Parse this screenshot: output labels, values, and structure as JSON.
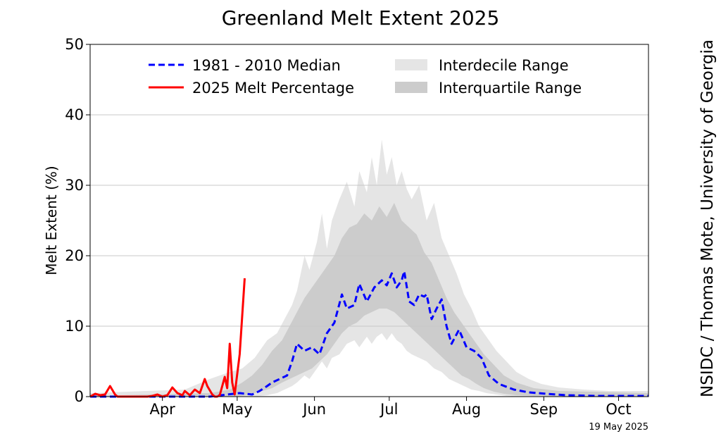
{
  "chart_data": {
    "type": "line",
    "title": "Greenland Melt Extent 2025",
    "ylabel": "Melt Extent (%)",
    "xlabel": "",
    "ylim": [
      0,
      50
    ],
    "yticks": [
      0,
      10,
      20,
      30,
      40,
      50
    ],
    "xlim_day_of_year": [
      77,
      301
    ],
    "x_month_ticks": [
      {
        "label": "Apr",
        "day": 106
      },
      {
        "label": "May",
        "day": 136
      },
      {
        "label": "Jun",
        "day": 167
      },
      {
        "label": "Jul",
        "day": 197
      },
      {
        "label": "Aug",
        "day": 228
      },
      {
        "label": "Sep",
        "day": 259
      },
      {
        "label": "Oct",
        "day": 289
      }
    ],
    "grid": "horizontal",
    "legend_placement": "top",
    "legend": {
      "median": "1981 - 2010 Median",
      "current": "2025 Melt Percentage",
      "interdecile": "Interdecile Range",
      "interquartile": "Interquartile Range"
    },
    "colors": {
      "median": "#0000ff",
      "current": "#ff0000",
      "interdecile": "#e5e5e5",
      "interquartile": "#cccccc"
    },
    "series": [
      {
        "name": "1981 - 2010 Median",
        "style": "dashed",
        "x": [
          77,
          110,
          125,
          132,
          137,
          142,
          145,
          148,
          150,
          153,
          156,
          158,
          160,
          163,
          166,
          169,
          172,
          175,
          178,
          180,
          183,
          185,
          188,
          191,
          194,
          196,
          198,
          200,
          202,
          203,
          205,
          207,
          209,
          211,
          212,
          214,
          216,
          218,
          220,
          222,
          225,
          228,
          231,
          234,
          237,
          241,
          247,
          253,
          260,
          268,
          280,
          301
        ],
        "y": [
          0,
          0,
          0,
          0.3,
          0.5,
          0.3,
          0.8,
          1.5,
          2.0,
          2.5,
          3.0,
          5.0,
          7.5,
          6.5,
          7.0,
          6.0,
          9.0,
          10.5,
          14.5,
          12.5,
          13.0,
          16.0,
          13.5,
          15.5,
          16.5,
          15.8,
          17.5,
          15.5,
          16.5,
          17.8,
          13.5,
          13.0,
          14.5,
          14.2,
          14.5,
          11.0,
          12.5,
          13.8,
          10.0,
          7.5,
          9.5,
          7.0,
          6.5,
          5.5,
          3.0,
          1.8,
          1.0,
          0.6,
          0.4,
          0.2,
          0.1,
          0.1
        ]
      },
      {
        "name": "2025 Melt Percentage",
        "style": "solid",
        "x": [
          77,
          79,
          81,
          83,
          85,
          87,
          88,
          90,
          95,
          100,
          102,
          104,
          106,
          108,
          110,
          112,
          114,
          115,
          117,
          119,
          121,
          123,
          124,
          126,
          127,
          128,
          129,
          131,
          132,
          133,
          134,
          135,
          137,
          139
        ],
        "y": [
          0,
          0.4,
          0.2,
          0.3,
          1.5,
          0.3,
          0,
          0,
          0,
          0,
          0.1,
          0.3,
          0,
          0.2,
          1.3,
          0.5,
          0.2,
          0.8,
          0.2,
          1.0,
          0.5,
          2.5,
          1.5,
          0.3,
          0,
          0,
          0.2,
          2.8,
          1.2,
          7.5,
          2.0,
          0.3,
          6.0,
          16.8
        ]
      }
    ],
    "bands": [
      {
        "name": "Interdecile Range",
        "x": [
          77,
          115,
          125,
          133,
          138,
          143,
          148,
          152,
          155,
          158,
          160,
          163,
          165,
          168,
          170,
          172,
          174,
          177,
          180,
          183,
          185,
          188,
          190,
          192,
          194,
          196,
          198,
          200,
          202,
          204,
          206,
          209,
          212,
          215,
          218,
          221,
          224,
          227,
          230,
          233,
          236,
          240,
          244,
          248,
          253,
          258,
          265,
          275,
          285,
          301
        ],
        "lower": [
          0,
          0,
          0,
          0,
          0,
          0,
          0.2,
          0.5,
          1.0,
          1.5,
          2.0,
          3.0,
          2.5,
          4.0,
          5.0,
          4.0,
          5.5,
          6.0,
          7.5,
          8.0,
          7.0,
          8.5,
          7.5,
          8.5,
          9.0,
          8.0,
          9.0,
          8.0,
          7.5,
          6.5,
          6.0,
          5.5,
          5.0,
          4.0,
          3.5,
          2.5,
          2.0,
          1.5,
          1.0,
          0.8,
          0.5,
          0.3,
          0.1,
          0,
          0,
          0,
          0,
          0,
          0,
          0
        ],
        "upper": [
          0.5,
          1.0,
          2.5,
          3.5,
          4.0,
          5.5,
          8.0,
          9.0,
          11.0,
          13.0,
          15.0,
          20.0,
          18.0,
          22.0,
          26.0,
          21.0,
          25.0,
          28.0,
          30.5,
          27.0,
          32.0,
          29.0,
          34.0,
          30.0,
          36.5,
          31.5,
          34.0,
          30.0,
          32.0,
          29.5,
          28.0,
          30.0,
          25.0,
          27.5,
          22.5,
          20.0,
          17.5,
          14.5,
          12.5,
          10.0,
          8.5,
          6.5,
          5.0,
          3.5,
          2.5,
          1.8,
          1.3,
          1.0,
          0.8,
          0.8
        ]
      },
      {
        "name": "Interquartile Range",
        "x": [
          77,
          125,
          133,
          138,
          142,
          146,
          150,
          154,
          157,
          160,
          163,
          166,
          169,
          172,
          175,
          178,
          181,
          184,
          187,
          190,
          193,
          196,
          199,
          202,
          205,
          208,
          211,
          214,
          217,
          220,
          223,
          226,
          229,
          232,
          235,
          239,
          243,
          248,
          255,
          265,
          301
        ],
        "lower": [
          0,
          0,
          0,
          0.1,
          0.4,
          0.8,
          1.2,
          2.0,
          2.5,
          3.0,
          3.5,
          4.0,
          5.0,
          6.0,
          7.5,
          9.0,
          10.0,
          10.5,
          11.5,
          12.0,
          12.5,
          12.5,
          12.0,
          11.0,
          10.0,
          9.0,
          8.0,
          7.0,
          6.0,
          5.0,
          4.0,
          3.0,
          2.5,
          1.8,
          1.2,
          0.7,
          0.4,
          0.2,
          0.1,
          0,
          0
        ],
        "upper": [
          0.1,
          0.5,
          1.0,
          2.0,
          3.0,
          4.5,
          6.5,
          8.0,
          10.0,
          12.0,
          14.0,
          15.5,
          17.0,
          18.5,
          20.0,
          22.5,
          24.0,
          24.5,
          26.0,
          25.0,
          27.0,
          25.5,
          27.5,
          25.0,
          24.0,
          23.0,
          20.5,
          19.0,
          16.5,
          14.0,
          12.0,
          10.5,
          9.0,
          7.5,
          6.0,
          4.5,
          3.0,
          2.0,
          1.2,
          0.8,
          0.5
        ]
      }
    ]
  },
  "credit": "NSIDC / Thomas Mote, University of Georgia",
  "date_stamp": "19 May 2025"
}
